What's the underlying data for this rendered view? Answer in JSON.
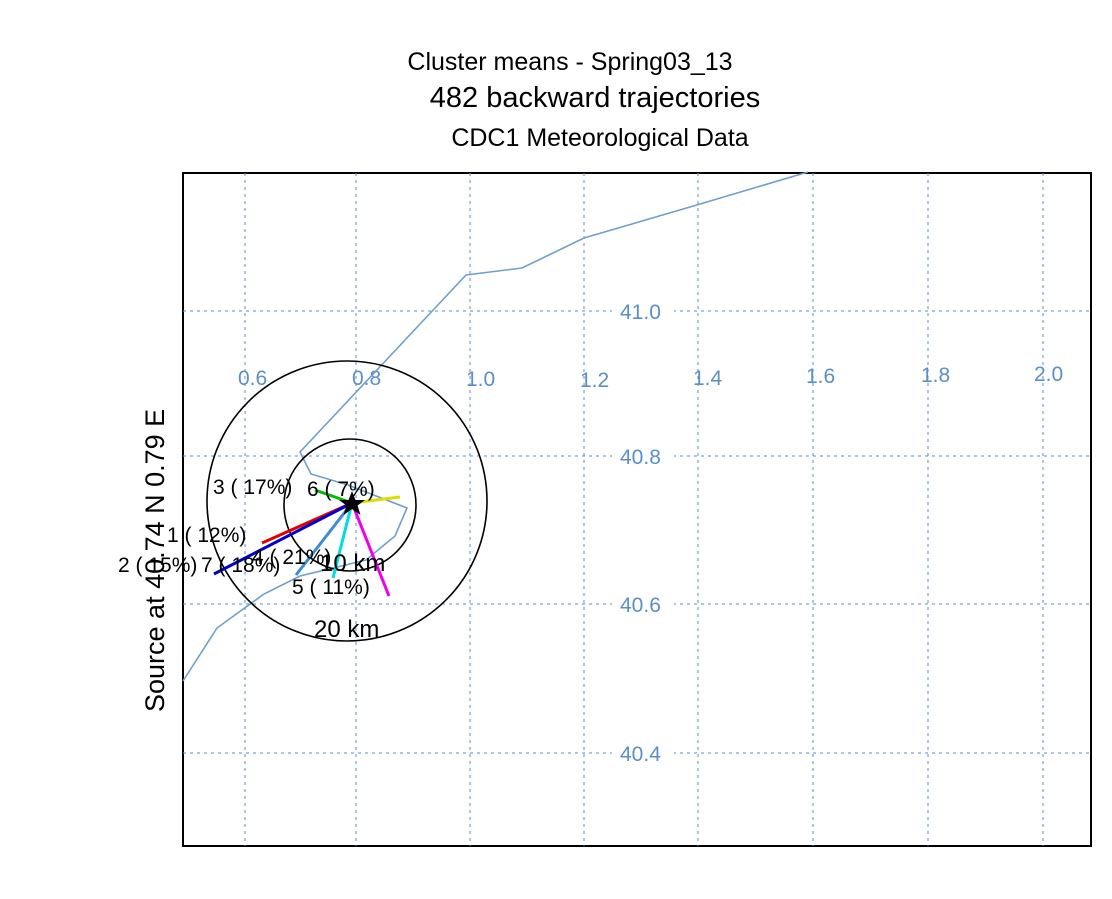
{
  "title": {
    "line1": "Cluster means - Spring03_13",
    "line2": "482 backward trajectories",
    "line3": "CDC1 Meteorological Data"
  },
  "source_label": "Source   at   40.74 N   0.79 E",
  "colors": {
    "grid": "#5b8fc7",
    "trajectory": "#6f9fcc",
    "frame": "#000000"
  },
  "map": {
    "lon_labels": [
      "0.6",
      "0.8",
      "1.0",
      "1.2",
      "1.4",
      "1.6",
      "1.8",
      "2.0"
    ],
    "lat_labels": [
      "41.0",
      "40.8",
      "40.6",
      "40.4"
    ],
    "rings": [
      "10 km",
      "20 km"
    ],
    "source_marker": "star"
  },
  "clusters": [
    {
      "id": "cluster-1",
      "label": "1 ( 12%)",
      "color": "#e00000"
    },
    {
      "id": "cluster-2",
      "label": "2 ( 15%)",
      "color": "#0000cc"
    },
    {
      "id": "cluster-3",
      "label": "3 ( 17%)",
      "color": "#00bb00"
    },
    {
      "id": "cluster-4",
      "label": "4 ( 21%)",
      "color": "#00dddd"
    },
    {
      "id": "cluster-5",
      "label": "5 ( 11%)",
      "color": "#ee00ee"
    },
    {
      "id": "cluster-6",
      "label": "6 (  7%)",
      "color": "#dddd00"
    },
    {
      "id": "cluster-7",
      "label": "7 ( 18%)",
      "color": "#3b8fd0"
    }
  ]
}
